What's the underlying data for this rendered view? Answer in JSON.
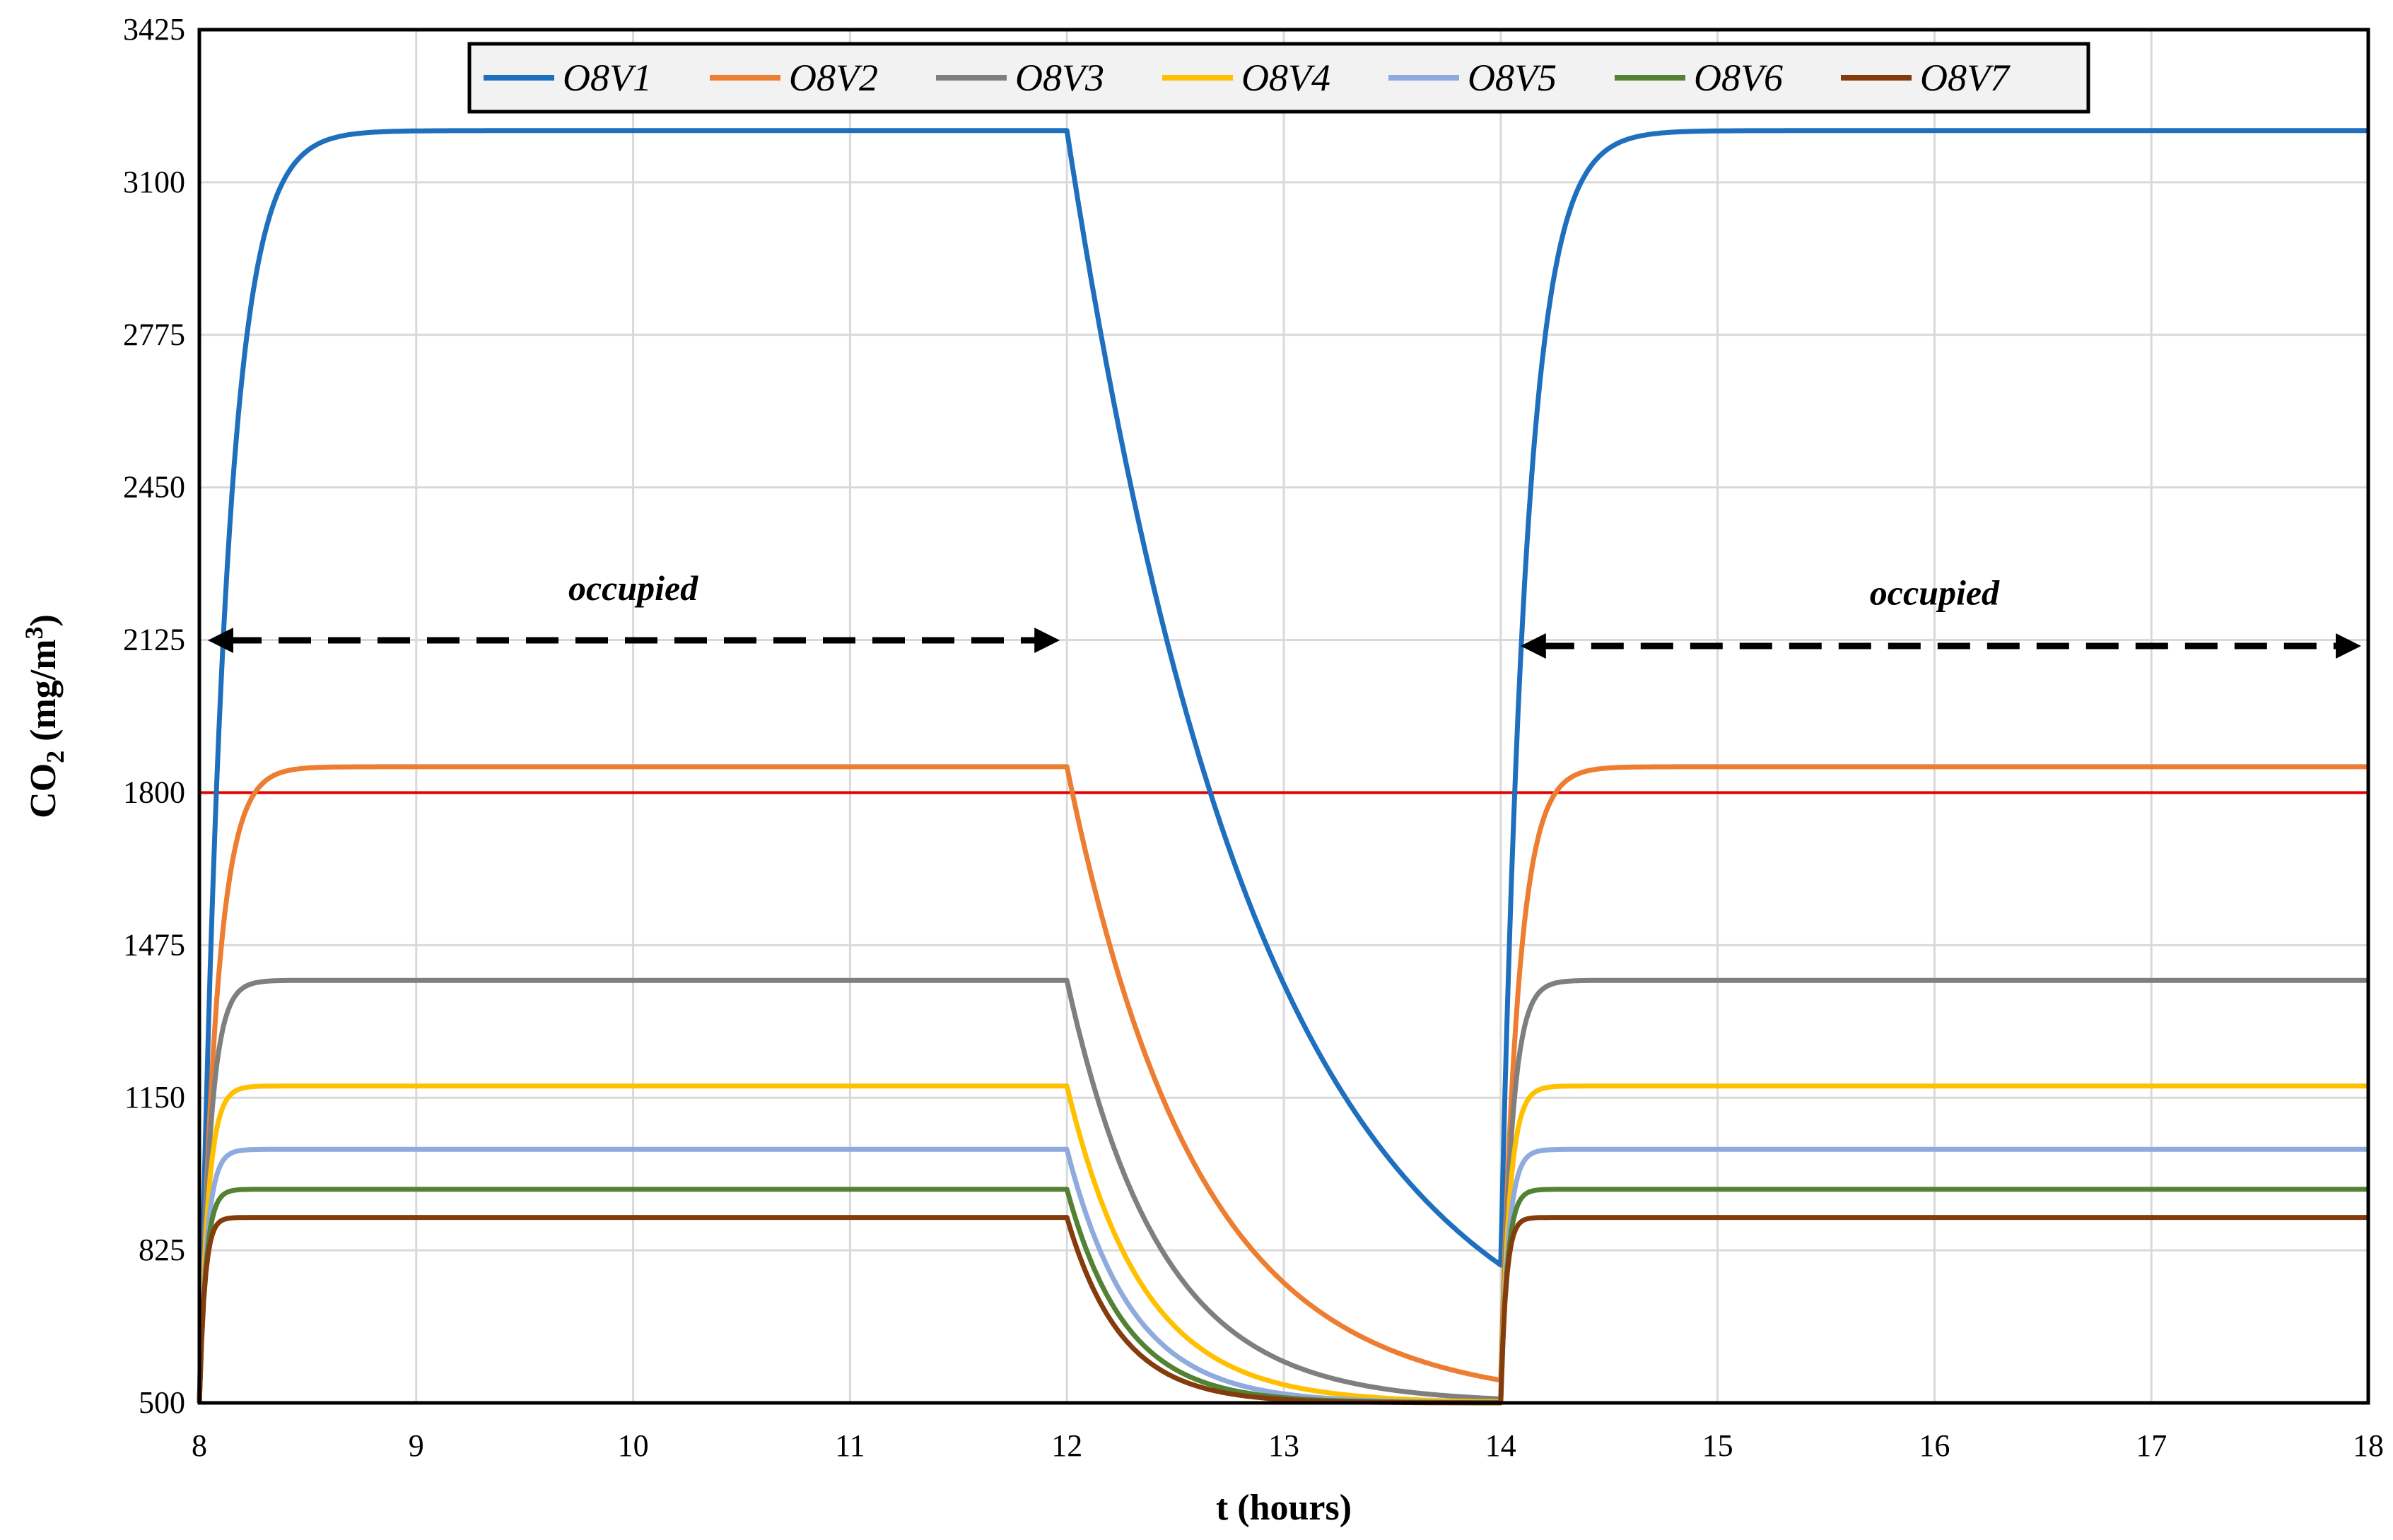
{
  "chart_data": {
    "type": "line",
    "title": "",
    "xlabel": "t (hours)",
    "ylabel": {
      "base": "CO",
      "sub": "2",
      "unit": " (mg/m",
      "sup": "3",
      "close": ")"
    },
    "xlim": [
      8,
      18
    ],
    "ylim": [
      500,
      3425
    ],
    "xticks": [
      "8",
      "9",
      "10",
      "11",
      "12",
      "13",
      "14",
      "15",
      "16",
      "17",
      "18"
    ],
    "yticks": [
      "500",
      "825",
      "1150",
      "1475",
      "1800",
      "2125",
      "2450",
      "2775",
      "3100",
      "3425"
    ],
    "grid": true,
    "legend_position": "top",
    "occupied_periods": [
      [
        8,
        12
      ],
      [
        14,
        18
      ]
    ],
    "threshold": {
      "value": 1800,
      "color": "#e00000"
    },
    "series": [
      {
        "name": "O8V1",
        "color": "#1f6fbf",
        "steady": 3210,
        "tau_rise": 0.12,
        "tau_decay": 0.9
      },
      {
        "name": "O8V2",
        "color": "#ed7d31",
        "steady": 1855,
        "tau_rise": 0.08,
        "tau_decay": 0.6
      },
      {
        "name": "O8V3",
        "color": "#7f7f7f",
        "steady": 1400,
        "tau_rise": 0.05,
        "tau_decay": 0.43
      },
      {
        "name": "O8V4",
        "color": "#ffc000",
        "steady": 1175,
        "tau_rise": 0.04,
        "tau_decay": 0.35
      },
      {
        "name": "O8V5",
        "color": "#8faadc",
        "steady": 1040,
        "tau_rise": 0.035,
        "tau_decay": 0.3
      },
      {
        "name": "O8V6",
        "color": "#548235",
        "steady": 955,
        "tau_rise": 0.03,
        "tau_decay": 0.27
      },
      {
        "name": "O8V7",
        "color": "#843c0c",
        "steady": 895,
        "tau_rise": 0.025,
        "tau_decay": 0.25
      }
    ],
    "baseline": 500,
    "annotations": [
      {
        "text": "occupied",
        "x": 10,
        "y": 2210
      },
      {
        "text": "occupied",
        "x": 16,
        "y": 2200
      }
    ]
  }
}
